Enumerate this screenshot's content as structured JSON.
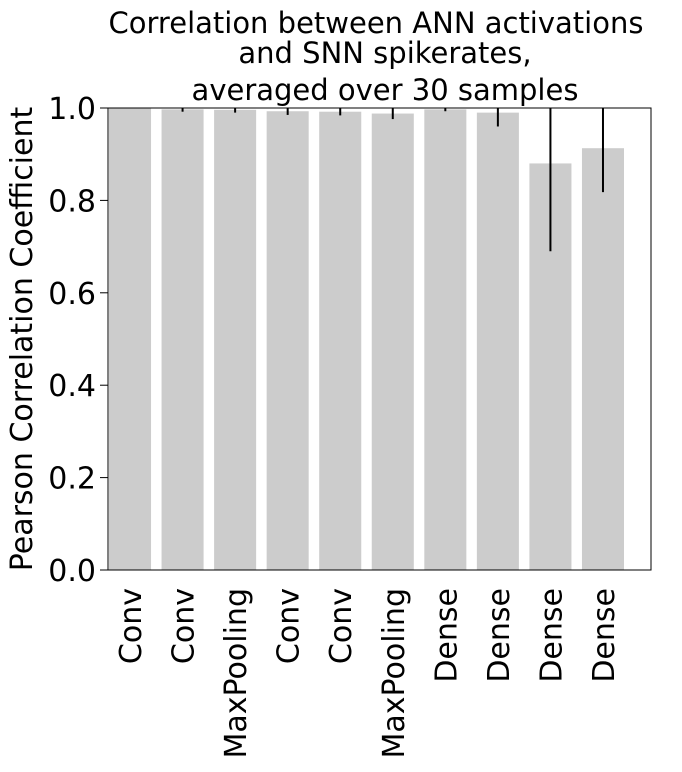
{
  "chart_data": {
    "type": "bar",
    "title": [
      "Correlation between ANN activations",
      "and SNN spikerates,",
      "averaged over 30 samples"
    ],
    "xlabel": "",
    "ylabel": "Pearson Correlation Coefficient",
    "ylim": [
      0.0,
      1.0
    ],
    "yticks": [
      "0.0",
      "0.2",
      "0.4",
      "0.6",
      "0.8",
      "1.0"
    ],
    "categories": [
      "Conv",
      "Conv",
      "MaxPooling",
      "Conv",
      "Conv",
      "MaxPooling",
      "Dense",
      "Dense",
      "Dense",
      "Dense"
    ],
    "values": [
      1.0,
      0.997,
      0.996,
      0.993,
      0.992,
      0.988,
      0.997,
      0.99,
      0.88,
      0.913
    ],
    "errors": [
      0.001,
      0.005,
      0.006,
      0.008,
      0.008,
      0.012,
      0.004,
      0.03,
      0.19,
      0.095
    ],
    "bar_color": "#cccccc",
    "error_color": "#000000",
    "grid": false
  }
}
